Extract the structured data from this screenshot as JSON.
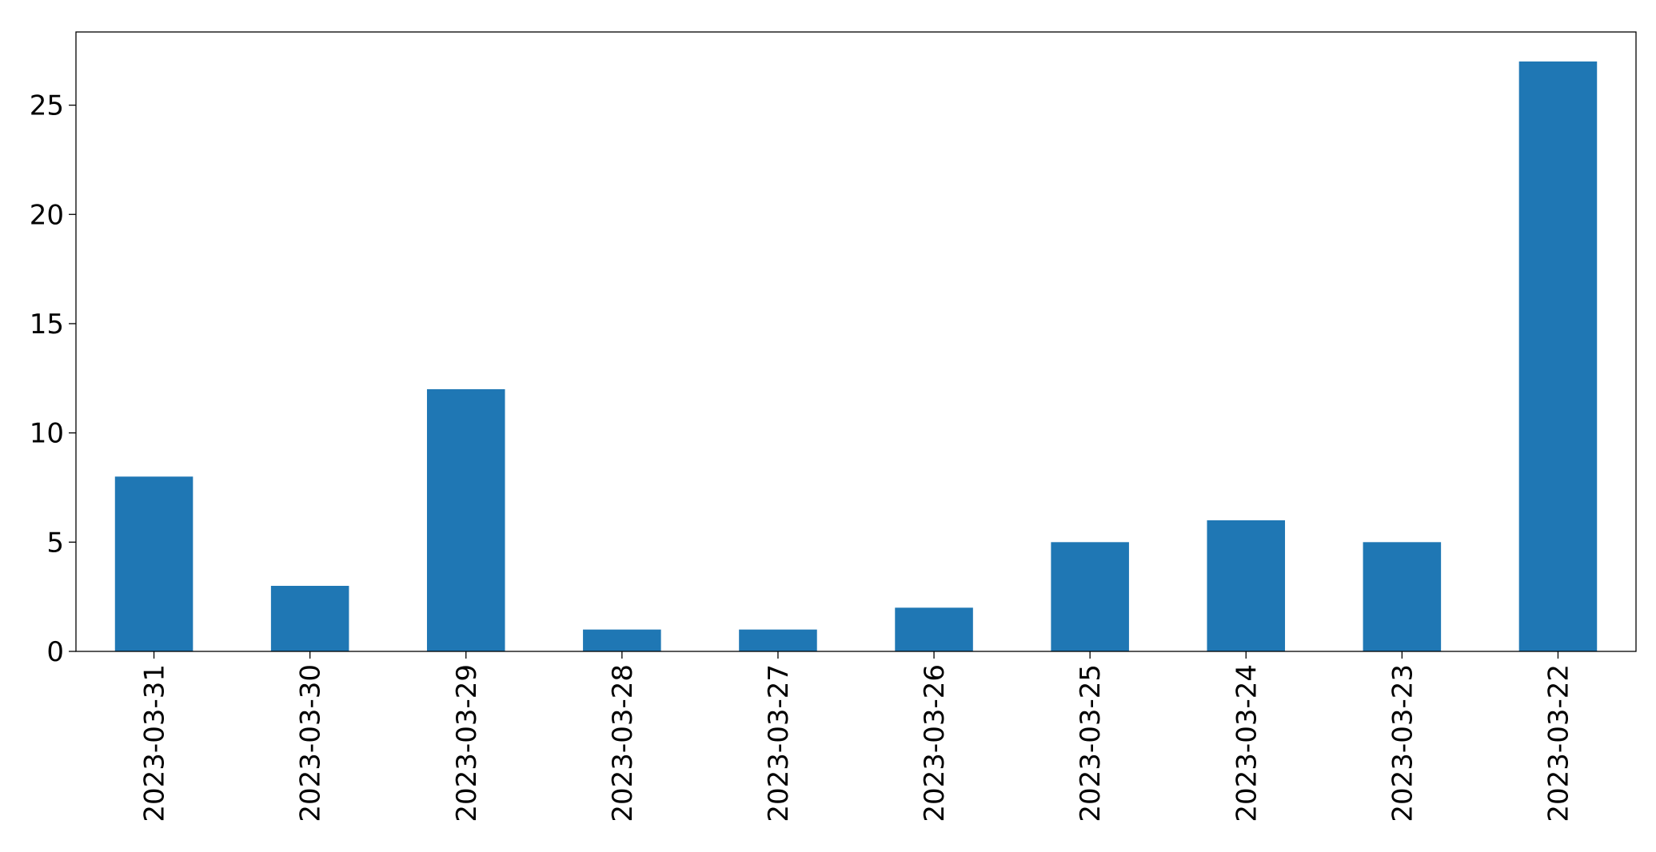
{
  "chart_data": {
    "type": "bar",
    "title": "",
    "xlabel": "",
    "ylabel": "",
    "categories": [
      "2023-03-31",
      "2023-03-30",
      "2023-03-29",
      "2023-03-28",
      "2023-03-27",
      "2023-03-26",
      "2023-03-25",
      "2023-03-24",
      "2023-03-23",
      "2023-03-22"
    ],
    "values": [
      8,
      3,
      12,
      1,
      1,
      2,
      5,
      6,
      5,
      27
    ],
    "yticks": [
      0,
      5,
      10,
      15,
      20,
      25
    ],
    "ylim": [
      0,
      28.35
    ],
    "grid": false,
    "legend": "none",
    "bar_color": "#1f77b4"
  }
}
